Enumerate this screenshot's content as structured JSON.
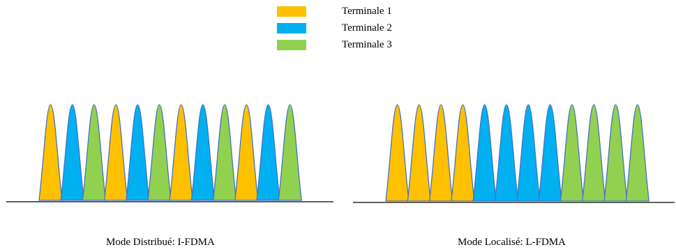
{
  "legend": [
    {
      "label": "Terminale 1",
      "color": "#FFC000"
    },
    {
      "label": "Terminale 2",
      "color": "#00B0F0"
    },
    {
      "label": "Terminale 3",
      "color": "#92D050"
    }
  ],
  "outline_color": "#4472C4",
  "panels": [
    {
      "caption": "Mode Distribué: I-FDMA",
      "sequence": [
        1,
        2,
        3,
        1,
        2,
        3,
        1,
        2,
        3,
        1,
        2,
        3
      ]
    },
    {
      "caption": "Mode Localisé: L-FDMA",
      "sequence": [
        1,
        1,
        1,
        1,
        2,
        2,
        2,
        2,
        3,
        3,
        3,
        3
      ]
    }
  ]
}
